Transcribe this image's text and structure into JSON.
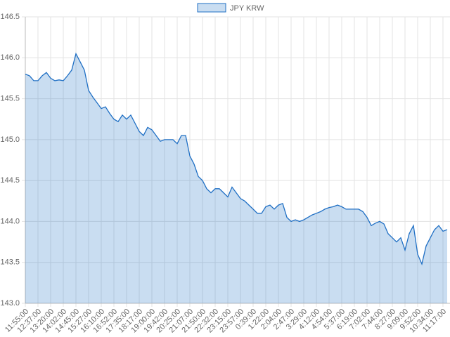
{
  "chart_data": {
    "type": "area",
    "categories": [
      "11:55:00",
      null,
      null,
      "12:37:00",
      null,
      null,
      "13:20:00",
      null,
      null,
      "14:02:00",
      null,
      null,
      "14:45:00",
      null,
      null,
      "15:27:00",
      null,
      null,
      "16:10:00",
      null,
      null,
      "16:52:00",
      null,
      null,
      "17:35:00",
      null,
      null,
      "18:17:00",
      null,
      null,
      "19:00:00",
      null,
      null,
      "19:42:00",
      null,
      null,
      "20:25:00",
      null,
      null,
      "21:07:00",
      null,
      null,
      "21:50:00",
      null,
      null,
      "22:32:00",
      null,
      null,
      "23:15:00",
      null,
      null,
      "23:57:00",
      null,
      null,
      "0:39:00",
      null,
      null,
      "1:22:00",
      null,
      null,
      "2:04:00",
      null,
      null,
      "2:47:00",
      null,
      null,
      "3:29:00",
      null,
      null,
      "4:12:00",
      null,
      null,
      "4:54:00",
      null,
      null,
      "5:37:00",
      null,
      null,
      "6:19:00",
      null,
      null,
      "7:02:00",
      null,
      null,
      "7:44:00",
      null,
      null,
      "8:27:00",
      null,
      null,
      "9:09:00",
      null,
      null,
      "9:52:00",
      null,
      null,
      "10:34:00",
      null,
      null,
      "11:17:00",
      null
    ],
    "series": [
      {
        "name": "JPY KRW",
        "color": "#1f6fc4",
        "values": [
          145.8,
          145.78,
          145.72,
          145.72,
          145.78,
          145.82,
          145.75,
          145.72,
          145.73,
          145.72,
          145.78,
          145.85,
          146.05,
          145.95,
          145.85,
          145.6,
          145.52,
          145.45,
          145.38,
          145.4,
          145.32,
          145.25,
          145.22,
          145.3,
          145.25,
          145.3,
          145.2,
          145.1,
          145.05,
          145.15,
          145.12,
          145.05,
          144.98,
          145.0,
          145.0,
          145.0,
          144.95,
          145.05,
          145.05,
          144.8,
          144.7,
          144.55,
          144.5,
          144.4,
          144.35,
          144.4,
          144.4,
          144.35,
          144.3,
          144.42,
          144.35,
          144.28,
          144.25,
          144.2,
          144.15,
          144.1,
          144.1,
          144.18,
          144.2,
          144.15,
          144.2,
          144.22,
          144.05,
          144.0,
          144.02,
          144.0,
          144.02,
          144.05,
          144.08,
          144.1,
          144.12,
          144.15,
          144.17,
          144.18,
          144.2,
          144.18,
          144.15,
          144.15,
          144.15,
          144.15,
          144.12,
          144.05,
          143.95,
          143.98,
          144.0,
          143.97,
          143.85,
          143.8,
          143.75,
          143.8,
          143.65,
          143.85,
          143.95,
          143.6,
          143.48,
          143.7,
          143.8,
          143.9,
          143.95,
          143.88,
          143.9
        ]
      }
    ],
    "ylim": [
      143.0,
      146.5
    ],
    "yticks": [
      {
        "value": 143,
        "label": "143.0"
      },
      {
        "value": 143.5,
        "label": "143.5"
      },
      {
        "value": 144,
        "label": "144.0"
      },
      {
        "value": 144.5,
        "label": "144.5"
      },
      {
        "value": 145,
        "label": "145.0"
      },
      {
        "value": 145.5,
        "label": "145.5"
      },
      {
        "value": 146,
        "label": "146.0"
      },
      {
        "value": 146.5,
        "label": "146.5"
      }
    ],
    "grid": true,
    "legend": "top"
  }
}
